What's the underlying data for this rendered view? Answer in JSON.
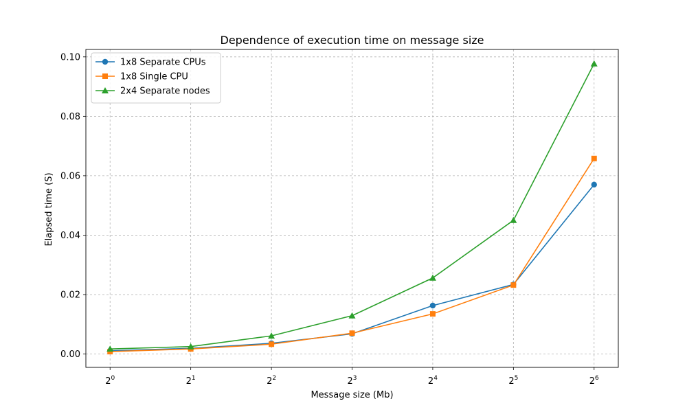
{
  "chart_data": {
    "type": "line",
    "title": "Dependence of execution time on message size",
    "xlabel": "Message size (Mb)",
    "ylabel": "Elapsed time (S)",
    "x_scale": "log2",
    "x": [
      1,
      2,
      4,
      8,
      16,
      32,
      64
    ],
    "x_tick_labels": [
      {
        "base": "2",
        "exp": "0"
      },
      {
        "base": "2",
        "exp": "1"
      },
      {
        "base": "2",
        "exp": "2"
      },
      {
        "base": "2",
        "exp": "3"
      },
      {
        "base": "2",
        "exp": "4"
      },
      {
        "base": "2",
        "exp": "5"
      },
      {
        "base": "2",
        "exp": "6"
      }
    ],
    "ylim": [
      -0.0045,
      0.1025
    ],
    "y_ticks": [
      0.0,
      0.02,
      0.04,
      0.06,
      0.08,
      0.1
    ],
    "y_tick_labels": [
      "0.00",
      "0.02",
      "0.04",
      "0.06",
      "0.08",
      "0.10"
    ],
    "grid": true,
    "legend_position": "top-left",
    "series": [
      {
        "name": "1x8 Separate CPUs",
        "color": "#1f77b4",
        "marker": "circle",
        "values": [
          0.0011,
          0.0019,
          0.0036,
          0.0068,
          0.0163,
          0.0234,
          0.057
        ]
      },
      {
        "name": "1x8 Single CPU",
        "color": "#ff7f0e",
        "marker": "square",
        "values": [
          0.0008,
          0.0017,
          0.0033,
          0.007,
          0.0135,
          0.0232,
          0.0658
        ]
      },
      {
        "name": "2x4 Separate nodes",
        "color": "#2ca02c",
        "marker": "triangle",
        "values": [
          0.0017,
          0.0025,
          0.0061,
          0.0129,
          0.0256,
          0.045,
          0.0977
        ]
      }
    ]
  }
}
